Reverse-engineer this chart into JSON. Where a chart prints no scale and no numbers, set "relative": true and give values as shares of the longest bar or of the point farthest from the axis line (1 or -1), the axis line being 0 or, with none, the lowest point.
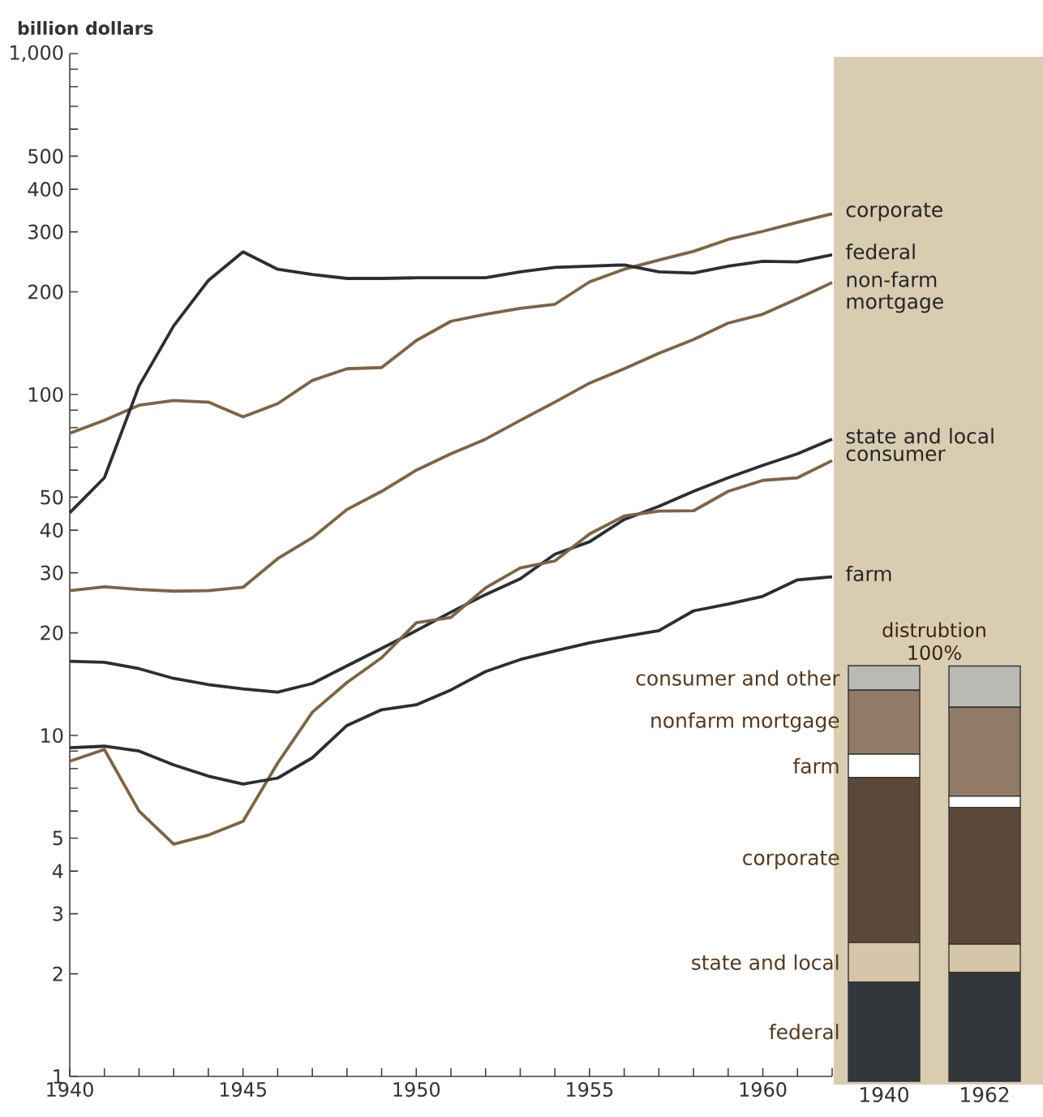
{
  "chart_data": [
    {
      "type": "line",
      "ylabel": "billion dollars",
      "log": "y",
      "xlim": [
        1940,
        1962
      ],
      "ylim": [
        1,
        1000
      ],
      "xticks": [
        1940,
        {
          "value": 1941,
          "label": null
        },
        {
          "value": 1942,
          "label": null
        },
        {
          "value": 1943,
          "label": null
        },
        {
          "value": 1944,
          "label": null
        },
        1945,
        {
          "value": 1946,
          "label": null
        },
        {
          "value": 1947,
          "label": null
        },
        {
          "value": 1948,
          "label": null
        },
        {
          "value": 1949,
          "label": null
        },
        1950,
        {
          "value": 1951,
          "label": null
        },
        {
          "value": 1952,
          "label": null
        },
        {
          "value": 1953,
          "label": null
        },
        {
          "value": 1954,
          "label": null
        },
        1955,
        {
          "value": 1956,
          "label": null
        },
        {
          "value": 1957,
          "label": null
        },
        {
          "value": 1958,
          "label": null
        },
        {
          "value": 1959,
          "label": null
        },
        1960,
        {
          "value": 1961,
          "label": null
        },
        {
          "value": 1962,
          "label": null
        }
      ],
      "yticks": [
        1,
        2,
        3,
        4,
        5,
        {
          "value": 6,
          "label": null
        },
        {
          "value": 7,
          "label": null
        },
        {
          "value": 8,
          "label": null
        },
        {
          "value": 9,
          "label": null
        },
        10,
        20,
        30,
        40,
        50,
        {
          "value": 60,
          "label": null
        },
        {
          "value": 70,
          "label": null
        },
        {
          "value": 80,
          "label": null
        },
        {
          "value": 90,
          "label": null
        },
        100,
        200,
        300,
        400,
        500,
        {
          "value": 600,
          "label": null
        },
        {
          "value": 700,
          "label": null
        },
        {
          "value": 800,
          "label": null
        },
        {
          "value": 900,
          "label": null
        },
        {
          "value": 1000,
          "label": "1,000"
        }
      ],
      "x": [
        1940,
        1941,
        1942,
        1943,
        1944,
        1945,
        1946,
        1947,
        1948,
        1949,
        1950,
        1951,
        1952,
        1953,
        1954,
        1955,
        1956,
        1957,
        1958,
        1959,
        1960,
        1961,
        1962
      ],
      "series": [
        {
          "name": "corporate",
          "color": "#7d6447",
          "values": [
            77,
            84,
            93,
            96,
            95,
            86,
            94,
            110,
            119,
            120,
            144,
            164,
            172,
            179,
            184,
            214,
            233,
            248,
            263,
            285,
            301,
            320,
            339
          ]
        },
        {
          "name": "federal",
          "color": "#2b2e33",
          "values": [
            45,
            57,
            106,
            159,
            216,
            262,
            233,
            225,
            219,
            219,
            220,
            220,
            220,
            229,
            236,
            238,
            240,
            229,
            227,
            238,
            246,
            245,
            257
          ]
        },
        {
          "name": "non-farm mortgage",
          "color": "#7d6447",
          "values": [
            26.6,
            27.3,
            26.8,
            26.5,
            26.6,
            27.2,
            33,
            38,
            46,
            52,
            60,
            67,
            74,
            84,
            95,
            108,
            119,
            132,
            145,
            162,
            172,
            191,
            213
          ]
        },
        {
          "name": "state and local",
          "color": "#2b2e33",
          "values": [
            16.5,
            16.4,
            15.7,
            14.7,
            14.1,
            13.7,
            13.4,
            14.2,
            16.0,
            18.0,
            20.3,
            23.0,
            25.9,
            28.8,
            34,
            37,
            43,
            47,
            52,
            57,
            62,
            67,
            74
          ]
        },
        {
          "name": "consumer",
          "color": "#7d6447",
          "values": [
            8.4,
            9.1,
            6.0,
            4.8,
            5.1,
            5.6,
            8.3,
            11.7,
            14.3,
            16.9,
            21.4,
            22.2,
            27.1,
            31,
            32.5,
            39,
            44,
            45.5,
            45.6,
            52,
            56,
            57,
            64
          ]
        },
        {
          "name": "farm",
          "color": "#2b2e33",
          "values": [
            9.2,
            9.3,
            9.0,
            8.2,
            7.6,
            7.2,
            7.5,
            8.6,
            10.7,
            11.9,
            12.3,
            13.6,
            15.4,
            16.7,
            17.7,
            18.7,
            19.5,
            20.3,
            23.2,
            24.3,
            25.6,
            28.6,
            29.2
          ]
        }
      ]
    },
    {
      "type": "bar",
      "title": "distrubtion",
      "subtitle": "100%",
      "stacked": true,
      "relative": true,
      "categories": [
        "1940",
        "1962"
      ],
      "series": [
        {
          "name": "federal",
          "color": "#32373b",
          "values": [
            0.239,
            0.262
          ]
        },
        {
          "name": "state and local",
          "color": "#d6c6a9",
          "values": [
            0.095,
            0.068
          ]
        },
        {
          "name": "corporate",
          "color": "#5c4838",
          "values": [
            0.397,
            0.329
          ]
        },
        {
          "name": "farm",
          "color": "#ffffff",
          "values": [
            0.056,
            0.027
          ]
        },
        {
          "name": "nonfarm mortgage",
          "color": "#917b66",
          "values": [
            0.154,
            0.214
          ]
        },
        {
          "name": "consumer and other",
          "color": "#b9b9b5",
          "values": [
            0.059,
            0.099
          ]
        }
      ]
    }
  ]
}
